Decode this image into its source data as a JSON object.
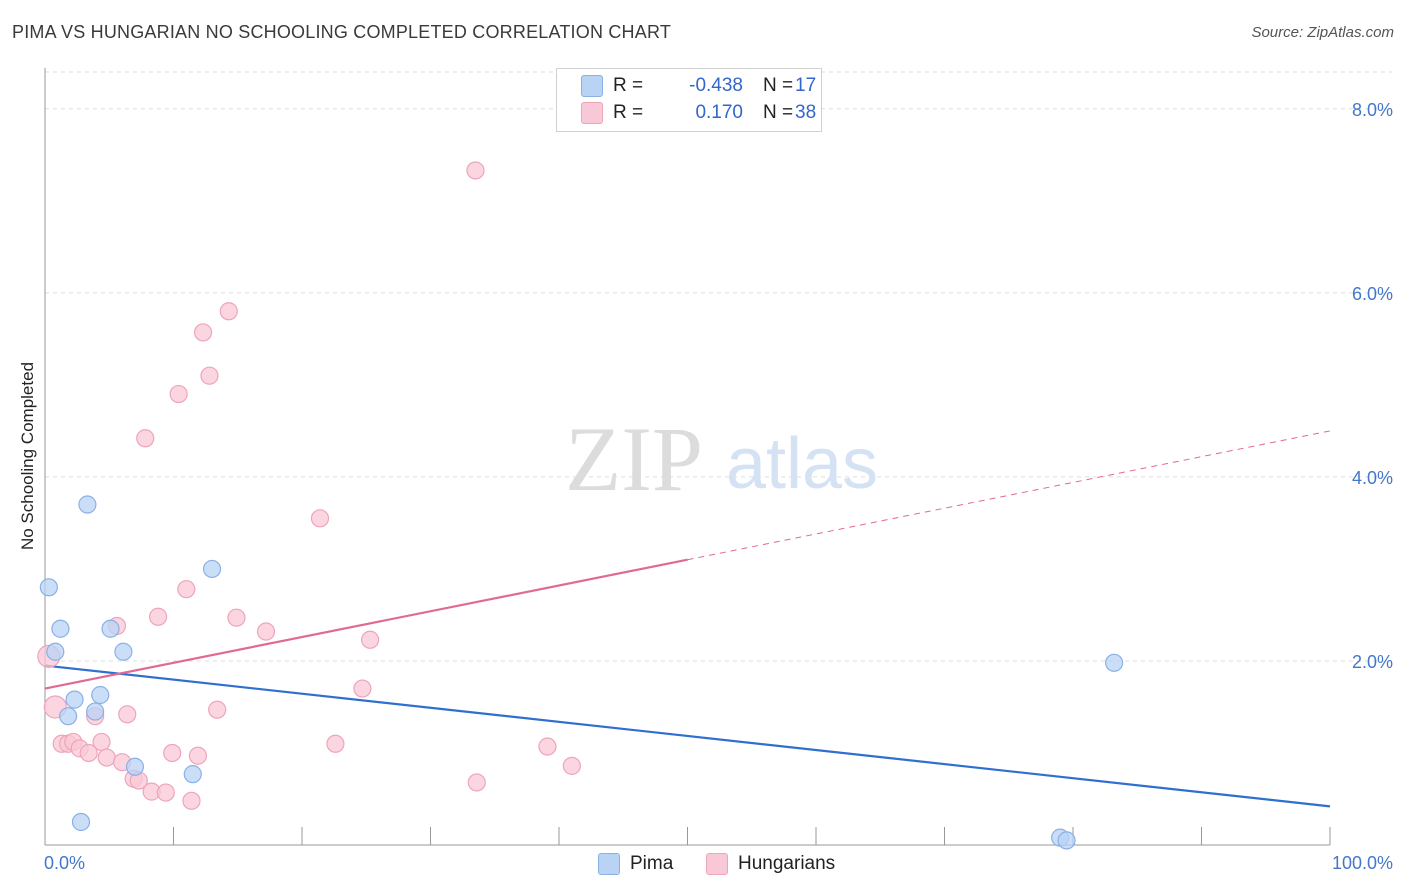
{
  "title": "PIMA VS HUNGARIAN NO SCHOOLING COMPLETED CORRELATION CHART",
  "source": "Source: ZipAtlas.com",
  "watermark": {
    "zip": "ZIP",
    "atlas": "atlas"
  },
  "legend_top": [
    {
      "r_label": "R =",
      "r_value": "-0.438",
      "n_label": "N =",
      "n_value": "17"
    },
    {
      "r_label": "R =",
      "r_value": "0.170",
      "n_label": "N =",
      "n_value": "38"
    }
  ],
  "legend_bottom": [
    "Pima",
    "Hungarians"
  ],
  "colors": {
    "pima_fill": "#b9d3f5",
    "pima_stroke": "#8ab0e6",
    "pima_line": "#2f6fd0",
    "hung_fill": "#f9c8d6",
    "hung_stroke": "#eea4bb",
    "hung_line": "#e06b90",
    "grid": "#dddddd",
    "tick_text": "#4477cc"
  },
  "chart_data": {
    "type": "scatter",
    "title": "PIMA VS HUNGARIAN NO SCHOOLING COMPLETED CORRELATION CHART",
    "xlabel": "",
    "ylabel": "No Schooling Completed",
    "xlim": [
      0,
      100
    ],
    "ylim": [
      0,
      8.4
    ],
    "x_tick_labels": [
      "0.0%",
      "100.0%"
    ],
    "y_ticks": [
      2,
      4,
      6,
      8
    ],
    "y_tick_labels": [
      "2.0%",
      "4.0%",
      "6.0%",
      "8.0%"
    ],
    "series": [
      {
        "name": "Pima",
        "r": -0.438,
        "n": 17,
        "points": [
          {
            "x": 0.3,
            "y": 2.8
          },
          {
            "x": 0.8,
            "y": 2.1
          },
          {
            "x": 1.2,
            "y": 2.35
          },
          {
            "x": 1.8,
            "y": 1.4
          },
          {
            "x": 2.3,
            "y": 1.58
          },
          {
            "x": 2.8,
            "y": 0.25
          },
          {
            "x": 3.3,
            "y": 3.7
          },
          {
            "x": 3.9,
            "y": 1.45
          },
          {
            "x": 4.3,
            "y": 1.63
          },
          {
            "x": 5.1,
            "y": 2.35
          },
          {
            "x": 6.1,
            "y": 2.1
          },
          {
            "x": 7.0,
            "y": 0.85
          },
          {
            "x": 11.5,
            "y": 0.77
          },
          {
            "x": 13.0,
            "y": 3.0
          },
          {
            "x": 83.2,
            "y": 1.98
          },
          {
            "x": 79.0,
            "y": 0.08
          },
          {
            "x": 79.5,
            "y": 0.05
          }
        ],
        "trend": {
          "x0": 0,
          "y0": 1.95,
          "x1": 100,
          "y1": 0.42,
          "solid_until": 100
        }
      },
      {
        "name": "Hungarians",
        "r": 0.17,
        "n": 38,
        "points": [
          {
            "x": 0.3,
            "y": 2.05
          },
          {
            "x": 0.8,
            "y": 1.5
          },
          {
            "x": 1.3,
            "y": 1.1
          },
          {
            "x": 1.8,
            "y": 1.1
          },
          {
            "x": 2.2,
            "y": 1.12
          },
          {
            "x": 2.7,
            "y": 1.05
          },
          {
            "x": 3.4,
            "y": 1.0
          },
          {
            "x": 3.9,
            "y": 1.4
          },
          {
            "x": 4.4,
            "y": 1.12
          },
          {
            "x": 4.8,
            "y": 0.95
          },
          {
            "x": 5.6,
            "y": 2.38
          },
          {
            "x": 6.0,
            "y": 0.9
          },
          {
            "x": 6.4,
            "y": 1.42
          },
          {
            "x": 6.9,
            "y": 0.72
          },
          {
            "x": 7.3,
            "y": 0.7
          },
          {
            "x": 7.8,
            "y": 4.42
          },
          {
            "x": 8.3,
            "y": 0.58
          },
          {
            "x": 8.8,
            "y": 2.48
          },
          {
            "x": 9.4,
            "y": 0.57
          },
          {
            "x": 9.9,
            "y": 1.0
          },
          {
            "x": 10.4,
            "y": 4.9
          },
          {
            "x": 11.0,
            "y": 2.78
          },
          {
            "x": 11.4,
            "y": 0.48
          },
          {
            "x": 11.9,
            "y": 0.97
          },
          {
            "x": 12.3,
            "y": 5.57
          },
          {
            "x": 12.8,
            "y": 5.1
          },
          {
            "x": 13.4,
            "y": 1.47
          },
          {
            "x": 14.3,
            "y": 5.8
          },
          {
            "x": 14.9,
            "y": 2.47
          },
          {
            "x": 17.2,
            "y": 2.32
          },
          {
            "x": 21.4,
            "y": 3.55
          },
          {
            "x": 22.6,
            "y": 1.1
          },
          {
            "x": 24.7,
            "y": 1.7
          },
          {
            "x": 25.3,
            "y": 2.23
          },
          {
            "x": 33.5,
            "y": 7.33
          },
          {
            "x": 33.6,
            "y": 0.68
          },
          {
            "x": 39.1,
            "y": 1.07
          },
          {
            "x": 41.0,
            "y": 0.86
          }
        ],
        "trend": {
          "x0": 0,
          "y0": 1.7,
          "x1": 100,
          "y1": 4.5,
          "solid_until": 50
        }
      }
    ]
  }
}
